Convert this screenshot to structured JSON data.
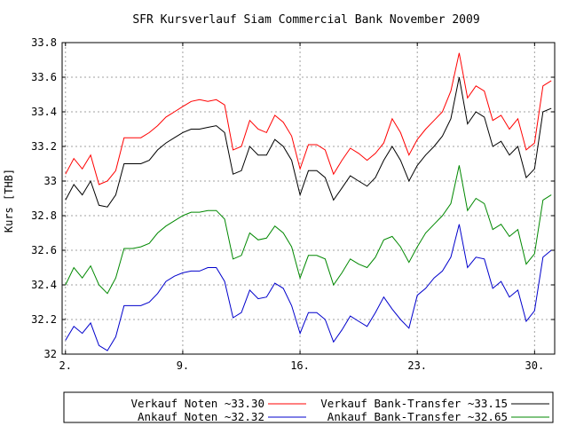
{
  "chart_data": {
    "type": "line",
    "title": "SFR Kursverlauf Siam Commercial Bank November 2009",
    "ylabel": "Kurs [THB]",
    "xlabel": "",
    "ylim": [
      32,
      33.8
    ],
    "xlim": [
      2,
      31
    ],
    "y_ticks": [
      32,
      32.2,
      32.4,
      32.6,
      32.8,
      33,
      33.2,
      33.4,
      33.6,
      33.8
    ],
    "y_tick_labels": [
      "32",
      "32.2",
      "32.4",
      "32.6",
      "32.8",
      "33",
      "33.2",
      "33.4",
      "33.6",
      "33.8"
    ],
    "x_ticks": [
      2,
      9,
      16,
      23,
      30
    ],
    "x_tick_labels": [
      "2.",
      "9.",
      "16.",
      "23.",
      "30."
    ],
    "grid": true,
    "legend_position": "bottom",
    "series": [
      {
        "name": "Verkauf Noten ~33.30",
        "color": "#ff0000",
        "x": [
          2,
          2.5,
          3,
          3.5,
          4,
          4.5,
          5,
          5.5,
          6,
          6.5,
          7,
          7.5,
          8,
          8.5,
          9,
          9.5,
          10,
          10.5,
          11,
          11.5,
          12,
          12.5,
          13,
          13.5,
          14,
          14.5,
          15,
          15.5,
          16,
          16.5,
          17,
          17.5,
          18,
          18.5,
          19,
          19.5,
          20,
          20.5,
          21,
          21.5,
          22,
          22.5,
          23,
          23.5,
          24,
          24.5,
          25,
          25.5,
          26,
          26.5,
          27,
          27.5,
          28,
          28.5,
          29,
          29.5,
          30,
          30.5,
          31
        ],
        "y": [
          33.04,
          33.13,
          33.07,
          33.15,
          32.98,
          33.0,
          33.06,
          33.25,
          33.25,
          33.25,
          33.28,
          33.32,
          33.37,
          33.4,
          33.43,
          33.46,
          33.47,
          33.46,
          33.47,
          33.44,
          33.18,
          33.2,
          33.35,
          33.3,
          33.28,
          33.38,
          33.34,
          33.26,
          33.07,
          33.21,
          33.21,
          33.18,
          33.04,
          33.12,
          33.19,
          33.16,
          33.12,
          33.16,
          33.22,
          33.36,
          33.28,
          33.15,
          33.24,
          33.3,
          33.35,
          33.4,
          33.52,
          33.74,
          33.48,
          33.55,
          33.52,
          33.35,
          33.38,
          33.3,
          33.36,
          33.18,
          33.22,
          33.55,
          33.58
        ]
      },
      {
        "name": "Ankauf Noten ~32.32",
        "color": "#0000cc",
        "x": [
          2,
          2.5,
          3,
          3.5,
          4,
          4.5,
          5,
          5.5,
          6,
          6.5,
          7,
          7.5,
          8,
          8.5,
          9,
          9.5,
          10,
          10.5,
          11,
          11.5,
          12,
          12.5,
          13,
          13.5,
          14,
          14.5,
          15,
          15.5,
          16,
          16.5,
          17,
          17.5,
          18,
          18.5,
          19,
          19.5,
          20,
          20.5,
          21,
          21.5,
          22,
          22.5,
          23,
          23.5,
          24,
          24.5,
          25,
          25.5,
          26,
          26.5,
          27,
          27.5,
          28,
          28.5,
          29,
          29.5,
          30,
          30.5,
          31
        ],
        "y": [
          32.08,
          32.16,
          32.12,
          32.18,
          32.05,
          32.02,
          32.1,
          32.28,
          32.28,
          32.28,
          32.3,
          32.35,
          32.42,
          32.45,
          32.47,
          32.48,
          32.48,
          32.5,
          32.5,
          32.42,
          32.21,
          32.24,
          32.37,
          32.32,
          32.33,
          32.41,
          32.38,
          32.28,
          32.12,
          32.24,
          32.24,
          32.2,
          32.07,
          32.14,
          32.22,
          32.19,
          32.16,
          32.24,
          32.33,
          32.26,
          32.2,
          32.15,
          32.34,
          32.38,
          32.44,
          32.48,
          32.56,
          32.75,
          32.5,
          32.56,
          32.55,
          32.38,
          32.42,
          32.33,
          32.37,
          32.19,
          32.25,
          32.56,
          32.6
        ]
      },
      {
        "name": "Verkauf Bank-Transfer ~33.15",
        "color": "#000000",
        "x": [
          2,
          2.5,
          3,
          3.5,
          4,
          4.5,
          5,
          5.5,
          6,
          6.5,
          7,
          7.5,
          8,
          8.5,
          9,
          9.5,
          10,
          10.5,
          11,
          11.5,
          12,
          12.5,
          13,
          13.5,
          14,
          14.5,
          15,
          15.5,
          16,
          16.5,
          17,
          17.5,
          18,
          18.5,
          19,
          19.5,
          20,
          20.5,
          21,
          21.5,
          22,
          22.5,
          23,
          23.5,
          24,
          24.5,
          25,
          25.5,
          26,
          26.5,
          27,
          27.5,
          28,
          28.5,
          29,
          29.5,
          30,
          30.5,
          31
        ],
        "y": [
          32.89,
          32.98,
          32.92,
          33.0,
          32.86,
          32.85,
          32.92,
          33.1,
          33.1,
          33.1,
          33.12,
          33.18,
          33.22,
          33.25,
          33.28,
          33.3,
          33.3,
          33.31,
          33.32,
          33.28,
          33.04,
          33.06,
          33.2,
          33.15,
          33.15,
          33.24,
          33.2,
          33.12,
          32.92,
          33.06,
          33.06,
          33.02,
          32.89,
          32.96,
          33.03,
          33.0,
          32.97,
          33.02,
          33.12,
          33.2,
          33.12,
          33.0,
          33.09,
          33.15,
          33.2,
          33.26,
          33.36,
          33.6,
          33.33,
          33.4,
          33.37,
          33.2,
          33.23,
          33.15,
          33.2,
          33.02,
          33.07,
          33.4,
          33.42
        ]
      },
      {
        "name": "Ankauf Bank-Transfer ~32.65",
        "color": "#008800",
        "x": [
          2,
          2.5,
          3,
          3.5,
          4,
          4.5,
          5,
          5.5,
          6,
          6.5,
          7,
          7.5,
          8,
          8.5,
          9,
          9.5,
          10,
          10.5,
          11,
          11.5,
          12,
          12.5,
          13,
          13.5,
          14,
          14.5,
          15,
          15.5,
          16,
          16.5,
          17,
          17.5,
          18,
          18.5,
          19,
          19.5,
          20,
          20.5,
          21,
          21.5,
          22,
          22.5,
          23,
          23.5,
          24,
          24.5,
          25,
          25.5,
          26,
          26.5,
          27,
          27.5,
          28,
          28.5,
          29,
          29.5,
          30,
          30.5,
          31
        ],
        "y": [
          32.4,
          32.5,
          32.44,
          32.51,
          32.4,
          32.35,
          32.44,
          32.61,
          32.61,
          32.62,
          32.64,
          32.7,
          32.74,
          32.77,
          32.8,
          32.82,
          32.82,
          32.83,
          32.83,
          32.78,
          32.55,
          32.57,
          32.7,
          32.66,
          32.67,
          32.74,
          32.7,
          32.62,
          32.44,
          32.57,
          32.57,
          32.55,
          32.4,
          32.47,
          32.55,
          32.52,
          32.5,
          32.56,
          32.66,
          32.68,
          32.62,
          32.53,
          32.62,
          32.7,
          32.75,
          32.8,
          32.87,
          33.09,
          32.83,
          32.9,
          32.87,
          32.72,
          32.75,
          32.68,
          32.72,
          32.52,
          32.58,
          32.89,
          32.92
        ]
      }
    ]
  }
}
